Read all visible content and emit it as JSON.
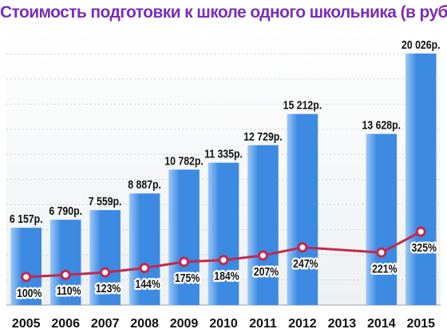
{
  "colors": {
    "title": "#7b2fb6",
    "bar": "#3d8ae2",
    "bar_light": "#9cc8f7",
    "line": "#c4284c",
    "text": "#111111",
    "gridline": "#c9cdd3",
    "background": "#eef0f2"
  },
  "chart_data": {
    "type": "bar",
    "title": "Стоимость подготовки к школе одного школьника (в руб.)",
    "categories": [
      "2005",
      "2006",
      "2007",
      "2008",
      "2009",
      "2010",
      "2011",
      "2012",
      "2013",
      "2014",
      "2015"
    ],
    "values": [
      6157,
      6790,
      7559,
      8887,
      10782,
      11335,
      12729,
      15212,
      null,
      13628,
      20026
    ],
    "value_labels": [
      "6 157р.",
      "6 790р.",
      "7 559р.",
      "8 887р.",
      "10 782р.",
      "11 335р.",
      "12 729р.",
      "15 212р.",
      "",
      "13 628р.",
      "20 026р."
    ],
    "series": [
      {
        "type": "line",
        "values": [
          100,
          110,
          123,
          144,
          175,
          184,
          207,
          247,
          null,
          221,
          325
        ],
        "labels": [
          "100%",
          "110%",
          "123%",
          "144%",
          "175%",
          "184%",
          "207%",
          "247%",
          "",
          "221%",
          "325%"
        ]
      }
    ],
    "ylim": [
      0,
      22000
    ],
    "grid": true,
    "legend": "none"
  }
}
